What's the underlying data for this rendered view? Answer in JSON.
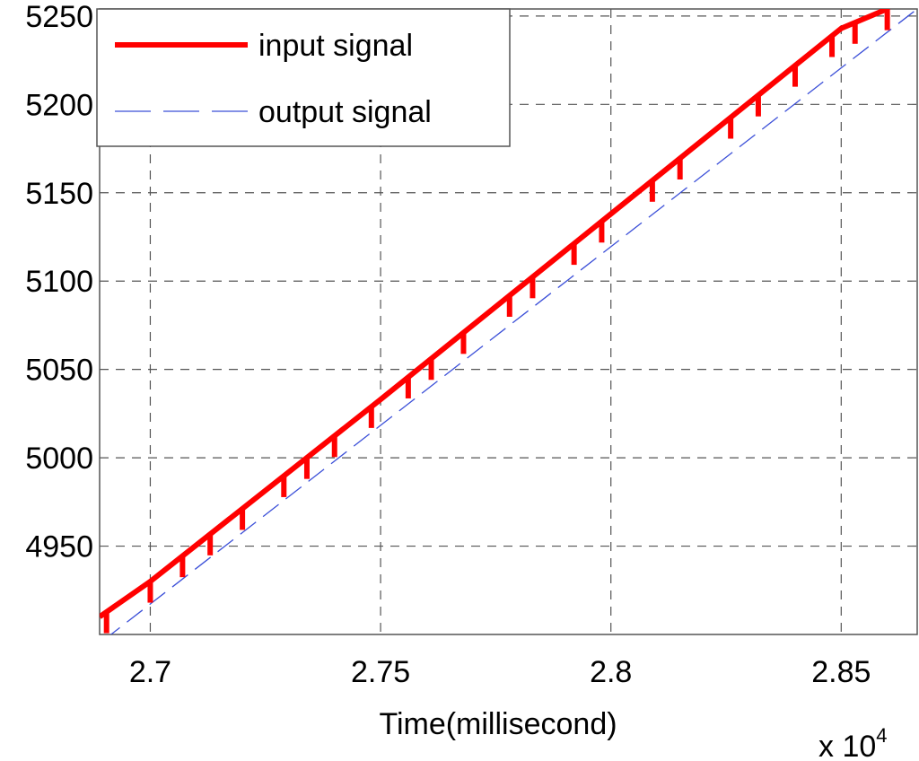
{
  "chart_data": {
    "type": "line",
    "xlabel": "Time(millisecond)",
    "x_multiplier_label": "x 10",
    "x_multiplier_exponent": "4",
    "xlim": [
      26890,
      28665
    ],
    "ylim": [
      4900,
      5254
    ],
    "xticks": [
      {
        "value": 27000,
        "label": "2.7"
      },
      {
        "value": 27500,
        "label": "2.75"
      },
      {
        "value": 28000,
        "label": "2.8"
      },
      {
        "value": 28500,
        "label": "2.85"
      }
    ],
    "yticks": [
      {
        "value": 4950,
        "label": "4950"
      },
      {
        "value": 5000,
        "label": "5000"
      },
      {
        "value": 5050,
        "label": "5050"
      },
      {
        "value": 5100,
        "label": "5100"
      },
      {
        "value": 5150,
        "label": "5150"
      },
      {
        "value": 5200,
        "label": "5200"
      },
      {
        "value": 5250,
        "label": "5250"
      }
    ],
    "grid": true,
    "legend_position": "top-left",
    "series": [
      {
        "name": "input signal",
        "color": "#ff0000",
        "style": "solid-thick",
        "x": [
          26890,
          27000,
          27500,
          28000,
          28500,
          28600
        ],
        "y": [
          4910,
          4930,
          5033,
          5138,
          5243,
          5254
        ],
        "dips": [
          26905,
          27000,
          27070,
          27130,
          27200,
          27290,
          27340,
          27400,
          27480,
          27560,
          27610,
          27680,
          27780,
          27830,
          27920,
          27980,
          28090,
          28150,
          28260,
          28320,
          28400,
          28480,
          28530,
          28600
        ],
        "dip_depth": 12
      },
      {
        "name": "output signal",
        "color": "#3b4fd8",
        "style": "dashed-thin",
        "x": [
          26900,
          28665
        ],
        "y": [
          4897,
          5254
        ]
      }
    ]
  }
}
